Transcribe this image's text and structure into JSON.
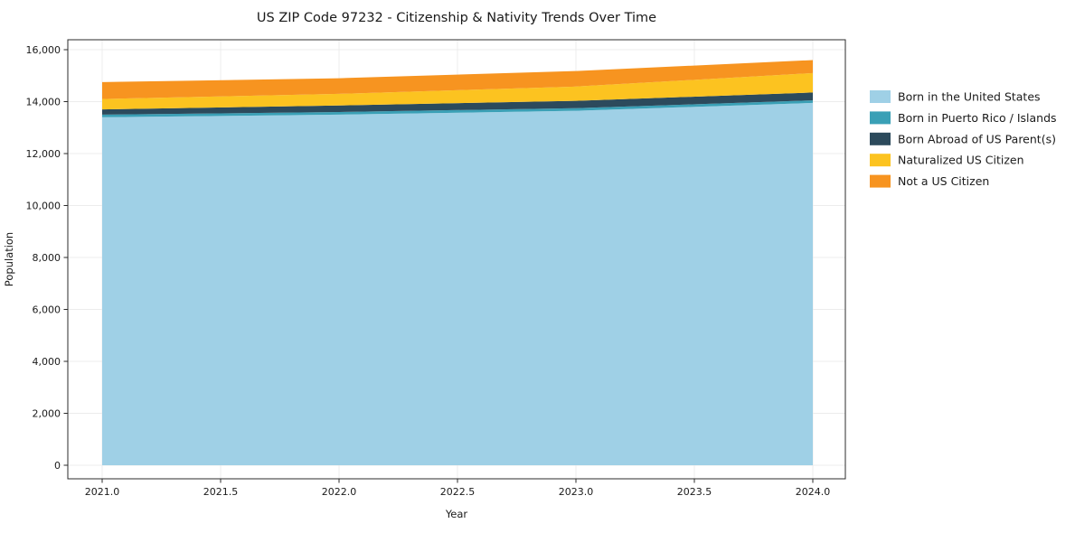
{
  "chart_data": {
    "type": "area",
    "title": "US ZIP Code 97232 - Citizenship & Nativity Trends Over Time",
    "xlabel": "Year",
    "ylabel": "Population",
    "x": [
      2021,
      2022,
      2023,
      2024
    ],
    "series": [
      {
        "name": "Born in the United States",
        "color": "#9fd0e6",
        "values": [
          13400,
          13500,
          13650,
          13950
        ]
      },
      {
        "name": "Born in Puerto Rico / Islands",
        "color": "#3aa0b6",
        "values": [
          100,
          100,
          100,
          100
        ]
      },
      {
        "name": "Born Abroad of US Parent(s)",
        "color": "#2c4a5c",
        "values": [
          200,
          250,
          280,
          300
        ]
      },
      {
        "name": "Naturalized US Citizen",
        "color": "#fcc320",
        "values": [
          400,
          450,
          550,
          750
        ]
      },
      {
        "name": "Not a US Citizen",
        "color": "#f79420",
        "values": [
          650,
          600,
          600,
          500
        ]
      }
    ],
    "stacked_totals": [
      14750,
      14900,
      15180,
      15600
    ],
    "xlim": [
      2020.86,
      2024.14
    ],
    "ylim": [
      0,
      16000
    ],
    "xticks": [
      2021.0,
      2021.5,
      2022.0,
      2022.5,
      2023.0,
      2023.5,
      2024.0
    ],
    "xtick_labels": [
      "2021.0",
      "2021.5",
      "2022.0",
      "2022.5",
      "2023.0",
      "2023.5",
      "2024.0"
    ],
    "yticks": [
      0,
      2000,
      4000,
      6000,
      8000,
      10000,
      12000,
      14000,
      16000
    ],
    "ytick_labels": [
      "0",
      "2,000",
      "4,000",
      "6,000",
      "8,000",
      "10,000",
      "12,000",
      "14,000",
      "16,000"
    ],
    "grid": true,
    "grid_color": "#ececec",
    "axis_color": "#2b2b2b",
    "legend_position": "right-outside"
  }
}
